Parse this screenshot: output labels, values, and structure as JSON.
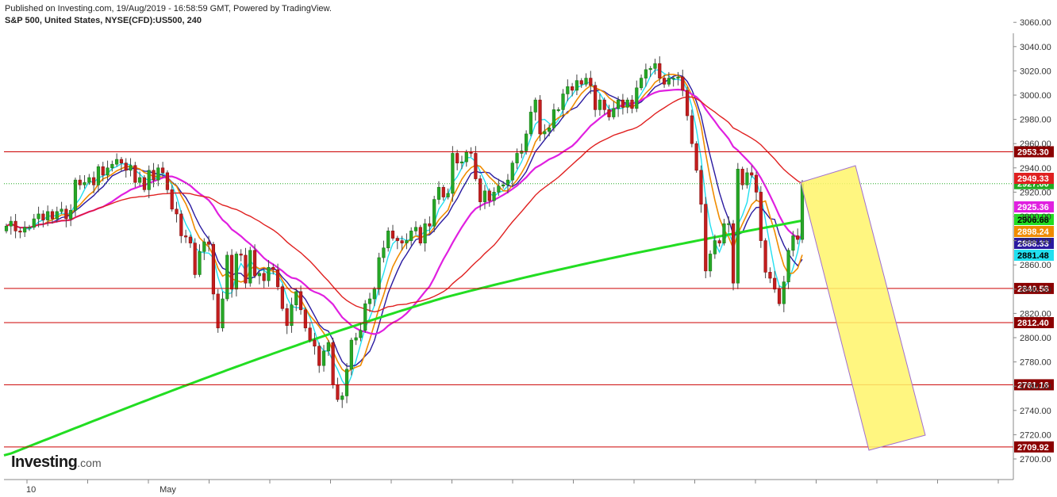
{
  "header": {
    "published": "Published on Investing.com, 19/Aug/2019 - 16:58:59 GMT, Powered by TradingView.",
    "symbol": "S&P 500, United States, NYSE(CFD):US500, 240"
  },
  "logo": {
    "brand": "Investing",
    "domain": ".com"
  },
  "chart_data": {
    "type": "candlestick",
    "title": "S&P 500, United States, NYSE(CFD):US500, 240",
    "ylim": [
      2690,
      3070
    ],
    "y_ticks": [
      2700,
      2720,
      2740,
      2760,
      2780,
      2800,
      2820,
      2840,
      2860,
      2880,
      2900,
      2920,
      2940,
      2960,
      2980,
      3000,
      3020,
      3040,
      3060
    ],
    "y_tick_labels": [
      "2700.00",
      "2720.00",
      "2740.00",
      "2760.00",
      "2780.00",
      "2800.00",
      "2820.00",
      "2840.00",
      "2860.00",
      "2880.00",
      "2900.00",
      "2920.00",
      "2940.00",
      "2960.00",
      "2980.00",
      "3000.00",
      "3020.00",
      "3040.00",
      "3060.00"
    ],
    "x_labels": [
      {
        "label": "10",
        "index": 5
      },
      {
        "label": "May",
        "index": 34
      }
    ],
    "horizontal_levels": [
      {
        "value": 2953.3,
        "label": "2953.30",
        "color": "#cc0000"
      },
      {
        "value": 2840.58,
        "label": "2840.58",
        "color": "#cc0000"
      },
      {
        "value": 2812.4,
        "label": "2812.40",
        "color": "#cc0000"
      },
      {
        "value": 2761.16,
        "label": "2761.16",
        "color": "#cc0000"
      },
      {
        "value": 2709.92,
        "label": "2709.92",
        "color": "#cc0000"
      }
    ],
    "current_price": {
      "value": 2927.0,
      "label": "2927.00",
      "color": "#22aa22"
    },
    "ma_tags": [
      {
        "value": 2949.33,
        "label": "2949.33",
        "color": "#e02020"
      },
      {
        "value": 2925.36,
        "label": "2925.36",
        "color": "#e020e0"
      },
      {
        "value": 2906.68,
        "label": "2906.68",
        "color": "#22dd22"
      },
      {
        "value": 2898.24,
        "label": "2898.24",
        "color": "#f08c00"
      },
      {
        "value": 2888.33,
        "label": "2888.33",
        "color": "#2a1aa0"
      },
      {
        "value": 2881.48,
        "label": "2881.48",
        "color": "#22e0f0"
      }
    ],
    "closes": [
      2892,
      2896,
      2888,
      2887,
      2891,
      2891,
      2898,
      2902,
      2897,
      2904,
      2898,
      2904,
      2906,
      2898,
      2905,
      2930,
      2926,
      2928,
      2932,
      2926,
      2941,
      2934,
      2940,
      2943,
      2947,
      2944,
      2938,
      2942,
      2928,
      2932,
      2922,
      2938,
      2930,
      2940,
      2936,
      2922,
      2906,
      2902,
      2884,
      2883,
      2878,
      2852,
      2871,
      2879,
      2877,
      2836,
      2808,
      2832,
      2868,
      2840,
      2869,
      2868,
      2845,
      2872,
      2851,
      2853,
      2847,
      2858,
      2856,
      2842,
      2824,
      2810,
      2827,
      2838,
      2823,
      2808,
      2798,
      2793,
      2777,
      2789,
      2796,
      2761,
      2749,
      2752,
      2774,
      2798,
      2800,
      2806,
      2828,
      2832,
      2840,
      2866,
      2874,
      2888,
      2882,
      2880,
      2878,
      2880,
      2888,
      2891,
      2878,
      2894,
      2892,
      2914,
      2924,
      2916,
      2919,
      2952,
      2944,
      2945,
      2953,
      2952,
      2931,
      2912,
      2921,
      2913,
      2920,
      2925,
      2926,
      2930,
      2944,
      2952,
      2954,
      2968,
      2986,
      2996,
      2968,
      2970,
      2973,
      2988,
      2988,
      3001,
      3007,
      3004,
      3012,
      3009,
      3014,
      3008,
      2988,
      2996,
      2988,
      2982,
      2989,
      2996,
      2990,
      2996,
      2989,
      3006,
      3014,
      3021,
      3022,
      3026,
      3014,
      3009,
      3014,
      3014,
      3015,
      3004,
      2983,
      2960,
      2938,
      2910,
      2855,
      2869,
      2880,
      2878,
      2894,
      2894,
      2845,
      2939,
      2926,
      2936,
      2934,
      2920,
      2880,
      2854,
      2849,
      2840,
      2828,
      2846,
      2872,
      2884,
      2881,
      2927
    ]
  }
}
